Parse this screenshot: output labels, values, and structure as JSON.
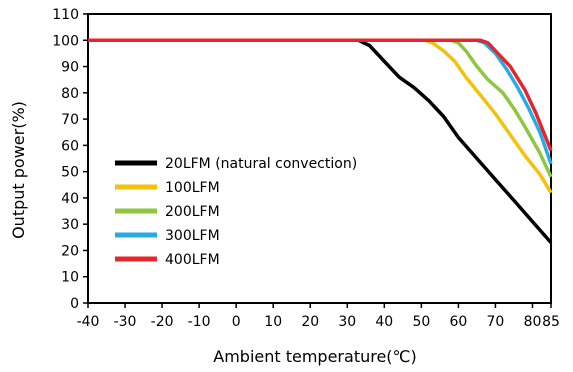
{
  "chart_data": {
    "type": "line",
    "title": "",
    "xlabel": "Ambient temperature(℃)",
    "ylabel": "Output power(%)",
    "xlim": [
      -40,
      85
    ],
    "ylim": [
      0,
      110
    ],
    "x_ticks": [
      -40,
      -30,
      -20,
      -10,
      0,
      10,
      20,
      30,
      40,
      50,
      60,
      70,
      80,
      85
    ],
    "y_ticks": [
      0,
      10,
      20,
      30,
      40,
      50,
      60,
      70,
      80,
      90,
      100,
      110
    ],
    "grid": false,
    "legend_position": "lower-left",
    "series": [
      {
        "name": "20LFM (natural convection)",
        "color": "#000000",
        "points": [
          [
            -40,
            100
          ],
          [
            33,
            100
          ],
          [
            36,
            98
          ],
          [
            40,
            92
          ],
          [
            44,
            86
          ],
          [
            48,
            82
          ],
          [
            52,
            77
          ],
          [
            56,
            71
          ],
          [
            60,
            63
          ],
          [
            65,
            55
          ],
          [
            70,
            47
          ],
          [
            75,
            39
          ],
          [
            80,
            31
          ],
          [
            85,
            23
          ]
        ]
      },
      {
        "name": "100LFM",
        "color": "#f4c20d",
        "points": [
          [
            -40,
            100
          ],
          [
            51,
            100
          ],
          [
            53,
            99
          ],
          [
            56,
            96
          ],
          [
            59,
            92
          ],
          [
            62,
            86
          ],
          [
            66,
            79
          ],
          [
            70,
            72
          ],
          [
            74,
            64
          ],
          [
            78,
            56
          ],
          [
            82,
            49
          ],
          [
            85,
            42
          ]
        ]
      },
      {
        "name": "200LFM",
        "color": "#8dc63f",
        "points": [
          [
            -40,
            100
          ],
          [
            58,
            100
          ],
          [
            60,
            99
          ],
          [
            62,
            96
          ],
          [
            65,
            90
          ],
          [
            68,
            85
          ],
          [
            72,
            80
          ],
          [
            75,
            74
          ],
          [
            78,
            67
          ],
          [
            82,
            57
          ],
          [
            85,
            48
          ]
        ]
      },
      {
        "name": "300LFM",
        "color": "#29abe2",
        "points": [
          [
            -40,
            100
          ],
          [
            63,
            100
          ],
          [
            65,
            100
          ],
          [
            67,
            99
          ],
          [
            70,
            95
          ],
          [
            73,
            89
          ],
          [
            76,
            82
          ],
          [
            79,
            74
          ],
          [
            82,
            65
          ],
          [
            85,
            53
          ]
        ]
      },
      {
        "name": "400LFM",
        "color": "#e3262e",
        "points": [
          [
            -40,
            100
          ],
          [
            66,
            100
          ],
          [
            68,
            99
          ],
          [
            70,
            96
          ],
          [
            74,
            90
          ],
          [
            78,
            81
          ],
          [
            81,
            72
          ],
          [
            83,
            65
          ],
          [
            85,
            58
          ]
        ]
      }
    ]
  }
}
